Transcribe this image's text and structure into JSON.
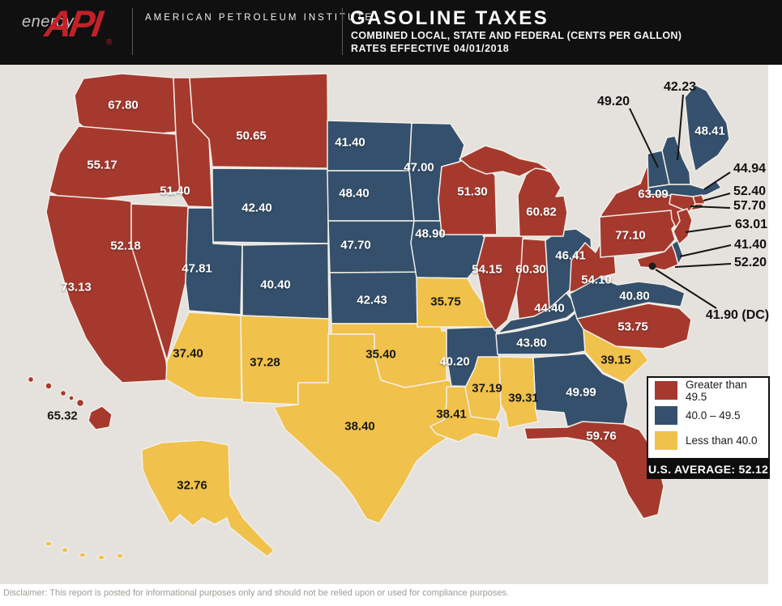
{
  "header": {
    "brand": {
      "energy": "energy",
      "api": "API",
      "registered": "®",
      "org": "AMERICAN PETROLEUM INSTITUTE"
    },
    "title": "GASOLINE TAXES",
    "subtitle": "COMBINED LOCAL, STATE AND FEDERAL (CENTS PER GALLON)",
    "effective": "RATES EFFECTIVE 04/01/2018"
  },
  "legend": {
    "items": [
      {
        "key": "high",
        "label": "Greater than 49.5"
      },
      {
        "key": "mid",
        "label": "40.0 – 49.5"
      },
      {
        "key": "low",
        "label": "Less than 40.0"
      }
    ],
    "us_average": "U.S. AVERAGE: 52.12"
  },
  "disclaimer": "Disclaimer: This report is posted for informational purposes only and should not be relied upon or used for compliance purposes.",
  "chart_data": {
    "type": "choropleth-map",
    "title": "Gasoline Taxes — Combined Local, State and Federal (Cents per Gallon)",
    "effective_date": "04/01/2018",
    "us_average": 52.12,
    "legend_position": "bottom-right",
    "background": "#e5e1dc",
    "categories": {
      "high": "Greater than 49.5",
      "mid": "40.0 – 49.5",
      "low": "Less than 40.0"
    },
    "colors": {
      "high": "#a6392e",
      "mid": "#34506c",
      "low": "#f0c14b"
    },
    "states": [
      {
        "id": "WA",
        "value": "67.80",
        "category": "high",
        "label": [
          152,
          130
        ],
        "text": "light"
      },
      {
        "id": "OR",
        "value": "55.17",
        "category": "high",
        "label": [
          126,
          204
        ],
        "text": "light"
      },
      {
        "id": "CA",
        "value": "73.13",
        "category": "high",
        "label": [
          94,
          355
        ],
        "text": "light"
      },
      {
        "id": "NV",
        "value": "52.18",
        "category": "high",
        "label": [
          155,
          304
        ],
        "text": "light"
      },
      {
        "id": "ID",
        "value": "51.40",
        "category": "high",
        "label": [
          216,
          236
        ],
        "text": "light"
      },
      {
        "id": "MT",
        "value": "50.65",
        "category": "high",
        "label": [
          310,
          168
        ],
        "text": "light"
      },
      {
        "id": "WY",
        "value": "42.40",
        "category": "mid",
        "label": [
          317,
          257
        ],
        "text": "light"
      },
      {
        "id": "UT",
        "value": "47.81",
        "category": "mid",
        "label": [
          243,
          332
        ],
        "text": "light"
      },
      {
        "id": "CO",
        "value": "40.40",
        "category": "mid",
        "label": [
          340,
          352
        ],
        "text": "light"
      },
      {
        "id": "AZ",
        "value": "37.40",
        "category": "low",
        "label": [
          232,
          437
        ],
        "text": "dark"
      },
      {
        "id": "NM",
        "value": "37.28",
        "category": "low",
        "label": [
          327,
          448
        ],
        "text": "dark"
      },
      {
        "id": "ND",
        "value": "41.40",
        "category": "mid",
        "label": [
          432,
          176
        ],
        "text": "light"
      },
      {
        "id": "SD",
        "value": "48.40",
        "category": "mid",
        "label": [
          437,
          239
        ],
        "text": "light"
      },
      {
        "id": "NE",
        "value": "47.70",
        "category": "mid",
        "label": [
          439,
          303
        ],
        "text": "light"
      },
      {
        "id": "KS",
        "value": "42.43",
        "category": "mid",
        "label": [
          459,
          371
        ],
        "text": "light"
      },
      {
        "id": "OK",
        "value": "35.40",
        "category": "low",
        "label": [
          470,
          438
        ],
        "text": "dark"
      },
      {
        "id": "TX",
        "value": "38.40",
        "category": "low",
        "label": [
          444,
          527
        ],
        "text": "dark"
      },
      {
        "id": "MN",
        "value": "47.00",
        "category": "mid",
        "label": [
          517,
          207
        ],
        "text": "light"
      },
      {
        "id": "IA",
        "value": "48.90",
        "category": "mid",
        "label": [
          531,
          289
        ],
        "text": "light"
      },
      {
        "id": "MO",
        "value": "35.75",
        "category": "low",
        "label": [
          550,
          373
        ],
        "text": "dark"
      },
      {
        "id": "AR",
        "value": "40.20",
        "category": "mid",
        "label": [
          561,
          447
        ],
        "text": "light"
      },
      {
        "id": "LA",
        "value": "38.41",
        "category": "low",
        "label": [
          557,
          512
        ],
        "text": "dark"
      },
      {
        "id": "WI",
        "value": "51.30",
        "category": "high",
        "label": [
          583,
          237
        ],
        "text": "light"
      },
      {
        "id": "IL",
        "value": "54.15",
        "category": "high",
        "label": [
          601,
          333
        ],
        "text": "light"
      },
      {
        "id": "MI",
        "value": "60.82",
        "category": "high",
        "label": [
          668,
          262
        ],
        "text": "light"
      },
      {
        "id": "IN",
        "value": "60.30",
        "category": "high",
        "label": [
          655,
          333
        ],
        "text": "light"
      },
      {
        "id": "OH",
        "value": "46.41",
        "category": "mid",
        "label": [
          704,
          316
        ],
        "text": "light"
      },
      {
        "id": "KY",
        "value": "44.40",
        "category": "mid",
        "label": [
          678,
          381
        ],
        "text": "light"
      },
      {
        "id": "TN",
        "value": "43.80",
        "category": "mid",
        "label": [
          656,
          424
        ],
        "text": "light"
      },
      {
        "id": "MS",
        "value": "37.19",
        "category": "low",
        "label": [
          601,
          480
        ],
        "text": "dark"
      },
      {
        "id": "AL",
        "value": "39.31",
        "category": "low",
        "label": [
          646,
          492
        ],
        "text": "dark"
      },
      {
        "id": "GA",
        "value": "49.99",
        "category": "mid",
        "label": [
          717,
          485
        ],
        "text": "light"
      },
      {
        "id": "FL",
        "value": "59.76",
        "category": "high",
        "label": [
          742,
          539
        ],
        "text": "light"
      },
      {
        "id": "SC",
        "value": "39.15",
        "category": "low",
        "label": [
          760,
          445
        ],
        "text": "dark"
      },
      {
        "id": "NC",
        "value": "53.75",
        "category": "high",
        "label": [
          781,
          404
        ],
        "text": "light"
      },
      {
        "id": "VA",
        "value": "40.80",
        "category": "mid",
        "label": [
          783,
          366
        ],
        "text": "light"
      },
      {
        "id": "WV",
        "value": "54.10",
        "category": "high",
        "label": [
          736,
          346
        ],
        "text": "light"
      },
      {
        "id": "PA",
        "value": "77.10",
        "category": "high",
        "label": [
          778,
          291
        ],
        "text": "light"
      },
      {
        "id": "NY",
        "value": "63.09",
        "category": "high",
        "label": [
          806,
          240
        ],
        "text": "light"
      },
      {
        "id": "ME",
        "value": "48.41",
        "category": "mid",
        "label": [
          876,
          162
        ],
        "text": "light"
      },
      {
        "id": "VT",
        "value": "49.20",
        "category": "mid",
        "label": [
          757,
          126
        ],
        "text": "callout",
        "line": [
          [
            777,
            134
          ],
          [
            812,
            207
          ]
        ]
      },
      {
        "id": "NH",
        "value": "42.23",
        "category": "mid",
        "label": [
          839,
          108
        ],
        "text": "callout",
        "line": [
          [
            843,
            117
          ],
          [
            836,
            198
          ]
        ]
      },
      {
        "id": "MA",
        "value": "44.94",
        "category": "mid",
        "label": [
          925,
          209
        ],
        "text": "callout",
        "line": [
          [
            901,
            213
          ],
          [
            869,
            234
          ]
        ]
      },
      {
        "id": "RI",
        "value": "52.40",
        "category": "high",
        "label": [
          925,
          237
        ],
        "text": "callout",
        "line": [
          [
            901,
            239
          ],
          [
            868,
            248
          ]
        ]
      },
      {
        "id": "CT",
        "value": "57.70",
        "category": "high",
        "label": [
          925,
          255
        ],
        "text": "callout",
        "line": [
          [
            901,
            257
          ],
          [
            852,
            255
          ]
        ]
      },
      {
        "id": "NJ",
        "value": "63.01",
        "category": "high",
        "label": [
          927,
          278
        ],
        "text": "callout",
        "line": [
          [
            902,
            279
          ],
          [
            846,
            287
          ]
        ]
      },
      {
        "id": "DE",
        "value": "41.40",
        "category": "mid",
        "label": [
          926,
          303
        ],
        "text": "callout",
        "line": [
          [
            902,
            303
          ],
          [
            839,
            317
          ]
        ]
      },
      {
        "id": "MD",
        "value": "52.20",
        "category": "high",
        "label": [
          926,
          325
        ],
        "text": "callout",
        "line": [
          [
            902,
            326
          ],
          [
            833,
            330
          ]
        ]
      },
      {
        "id": "DC",
        "value": "41.90 (DC)",
        "category": "mid",
        "label": [
          910,
          390
        ],
        "text": "callout",
        "line": [
          [
            884,
            381
          ],
          [
            809,
            333
          ]
        ]
      },
      {
        "id": "AK",
        "value": "32.76",
        "category": "low",
        "label": [
          237,
          600
        ],
        "text": "dark"
      },
      {
        "id": "HI",
        "value": "65.32",
        "category": "high",
        "label": [
          77,
          514
        ],
        "text": "dark"
      }
    ]
  }
}
